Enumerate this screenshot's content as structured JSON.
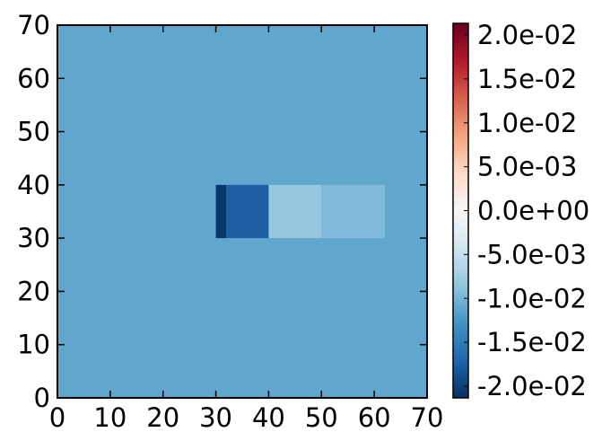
{
  "chart_data": {
    "type": "heatmap",
    "title": "",
    "xlabel": "",
    "ylabel": "",
    "xlim": [
      0,
      70
    ],
    "ylim": [
      0,
      70
    ],
    "x_ticks": [
      "0",
      "10",
      "20",
      "30",
      "40",
      "50",
      "60",
      "70"
    ],
    "y_ticks": [
      "0",
      "10",
      "20",
      "30",
      "40",
      "50",
      "60",
      "70"
    ],
    "colormap": "RdBu_r",
    "background_value": -0.0105,
    "regions": [
      {
        "x": [
          30,
          32
        ],
        "y": [
          30,
          40
        ],
        "value": -0.0195
      },
      {
        "x": [
          32,
          40
        ],
        "y": [
          30,
          40
        ],
        "value": -0.0165
      },
      {
        "x": [
          40,
          50
        ],
        "y": [
          30,
          40
        ],
        "value": -0.0078
      },
      {
        "x": [
          50,
          62
        ],
        "y": [
          30,
          40
        ],
        "value": -0.0088
      }
    ],
    "colorbar": {
      "min": -0.02,
      "max": 0.02,
      "tick_labels": [
        "2.0e-02",
        "1.5e-02",
        "1.0e-02",
        "5.0e-03",
        "0.0e+00",
        "-5.0e-03",
        "-1.0e-02",
        "-1.5e-02",
        "-2.0e-02"
      ]
    },
    "grid": false
  },
  "colors": {
    "background_cell": "#7fb4d8",
    "colormap_stops": [
      "#053061",
      "#2166ac",
      "#4393c3",
      "#92c5de",
      "#d1e5f0",
      "#f7f7f7",
      "#fddbc7",
      "#f4a582",
      "#d6604d",
      "#b2182b",
      "#67001f"
    ]
  }
}
